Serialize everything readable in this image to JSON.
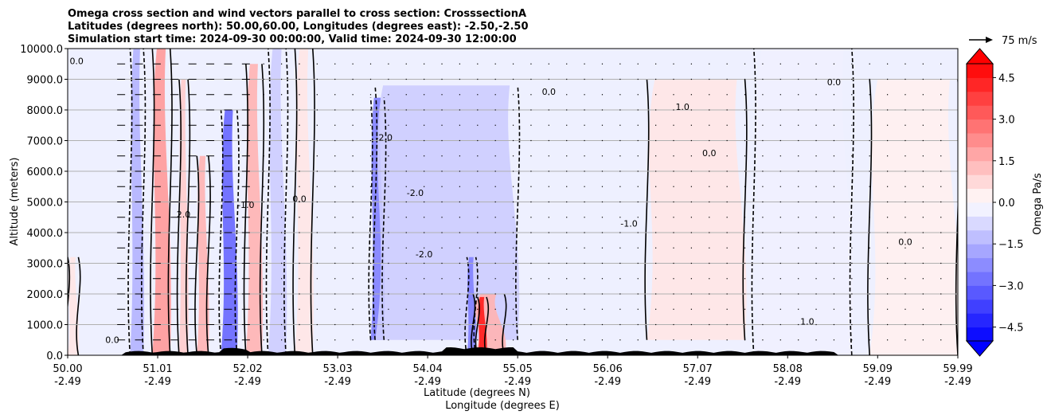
{
  "chart_data": {
    "type": "heatmap",
    "title_lines": [
      "Omega cross section and wind vectors parallel to cross section: CrosssectionA",
      "Latitudes (degrees north): 50.00,60.00, Longitudes (degrees east): -2.50,-2.50",
      "Simulation start time: 2024-09-30 00:00:00, Valid time: 2024-09-30 12:00:00"
    ],
    "ylabel": "Altitude (meters)",
    "xlabel_lines": [
      "Latitude (degrees N)",
      "Longitude (degrees E)"
    ],
    "ylim": [
      0,
      10000
    ],
    "y_ticks": [
      0,
      1000,
      2000,
      3000,
      4000,
      5000,
      6000,
      7000,
      8000,
      9000,
      10000
    ],
    "y_tick_labels": [
      "0.0",
      "1000.0",
      "2000.0",
      "3000.0",
      "4000.0",
      "5000.0",
      "6000.0",
      "7000.0",
      "8000.0",
      "9000.0",
      "10000.0"
    ],
    "xlim": [
      50.0,
      59.99
    ],
    "x_ticks": [
      {
        "lat": 50.0,
        "lat_label": "50.00",
        "lon_label": "-2.49"
      },
      {
        "lat": 51.01,
        "lat_label": "51.01",
        "lon_label": "-2.49"
      },
      {
        "lat": 52.02,
        "lat_label": "52.02",
        "lon_label": "-2.49"
      },
      {
        "lat": 53.03,
        "lat_label": "53.03",
        "lon_label": "-2.49"
      },
      {
        "lat": 54.04,
        "lat_label": "54.04",
        "lon_label": "-2.49"
      },
      {
        "lat": 55.05,
        "lat_label": "55.05",
        "lon_label": "-2.49"
      },
      {
        "lat": 56.06,
        "lat_label": "56.06",
        "lon_label": "-2.49"
      },
      {
        "lat": 57.07,
        "lat_label": "57.07",
        "lon_label": "-2.49"
      },
      {
        "lat": 58.08,
        "lat_label": "58.08",
        "lon_label": "-2.49"
      },
      {
        "lat": 59.09,
        "lat_label": "59.09",
        "lon_label": "-2.49"
      },
      {
        "lat": 59.99,
        "lat_label": "59.99",
        "lon_label": "-2.49"
      }
    ],
    "grid": "horizontal",
    "colorbar": {
      "label": "Omega Pa/s",
      "range": [
        -5.0,
        5.0
      ],
      "ticks": [
        -4.5,
        -3.0,
        -1.5,
        0.0,
        1.5,
        3.0,
        4.5
      ],
      "tick_labels": [
        "−4.5",
        "−3.0",
        "−1.5",
        "0.0",
        "1.5",
        "3.0",
        "4.5"
      ],
      "extend": "both",
      "colormap": "bwr",
      "low_color": "#0000ff",
      "mid_color": "#ffffff",
      "high_color": "#ff0000"
    },
    "vector_key": {
      "label": "75 m/s",
      "speed": 75
    },
    "contour_labels": [
      "0.0",
      "1.0",
      "2.0",
      "-1.0",
      "-2.0"
    ],
    "omega_bands": [
      {
        "lat0": 50.0,
        "lat1": 50.12,
        "z0": 0,
        "z1": 3200,
        "omega": 0.5
      },
      {
        "lat0": 50.7,
        "lat1": 50.85,
        "z0": 0,
        "z1": 10000,
        "omega": -1.5
      },
      {
        "lat0": 50.95,
        "lat1": 51.15,
        "z0": 0,
        "z1": 10000,
        "omega": 2.0
      },
      {
        "lat0": 51.25,
        "lat1": 51.35,
        "z0": 0,
        "z1": 9000,
        "omega": 1.0
      },
      {
        "lat0": 51.45,
        "lat1": 51.58,
        "z0": 0,
        "z1": 6500,
        "omega": 1.5
      },
      {
        "lat0": 51.72,
        "lat1": 51.9,
        "z0": 0,
        "z1": 8000,
        "omega": -3.0
      },
      {
        "lat0": 52.0,
        "lat1": 52.18,
        "z0": 0,
        "z1": 9500,
        "omega": 1.5
      },
      {
        "lat0": 52.25,
        "lat1": 52.45,
        "z0": 0,
        "z1": 10000,
        "omega": -1.0
      },
      {
        "lat0": 52.55,
        "lat1": 52.75,
        "z0": 0,
        "z1": 10000,
        "omega": 0.5
      },
      {
        "lat0": 53.4,
        "lat1": 53.55,
        "z0": 500,
        "z1": 8400,
        "omega": -2.5
      },
      {
        "lat0": 53.45,
        "lat1": 55.05,
        "z0": 500,
        "z1": 8800,
        "omega": -1.0
      },
      {
        "lat0": 54.55,
        "lat1": 54.9,
        "z0": 0,
        "z1": 2000,
        "omega": 1.5
      },
      {
        "lat0": 54.6,
        "lat1": 54.7,
        "z0": 0,
        "z1": 1900,
        "omega": 4.5
      },
      {
        "lat0": 54.48,
        "lat1": 54.58,
        "z0": 0,
        "z1": 3200,
        "omega": -2.5
      },
      {
        "lat0": 56.5,
        "lat1": 57.6,
        "z0": 500,
        "z1": 9000,
        "omega": 0.5
      },
      {
        "lat0": 57.7,
        "lat1": 58.8,
        "z0": 0,
        "z1": 10000,
        "omega": -0.3
      },
      {
        "lat0": 59.0,
        "lat1": 59.99,
        "z0": 0,
        "z1": 9000,
        "omega": 0.3
      }
    ]
  }
}
